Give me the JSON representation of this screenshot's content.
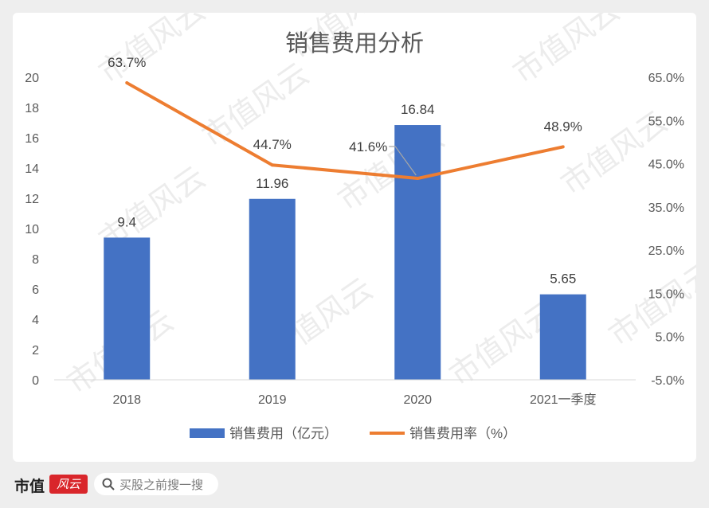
{
  "chart_data": {
    "type": "bar",
    "title": "销售费用分析",
    "categories": [
      "2018",
      "2019",
      "2020",
      "2021一季度"
    ],
    "series": [
      {
        "name": "销售费用（亿元）",
        "type": "bar",
        "axis": "left",
        "color": "#4472c4",
        "values": [
          9.4,
          11.96,
          16.84,
          5.65
        ],
        "labels": [
          "9.4",
          "11.96",
          "16.84",
          "5.65"
        ]
      },
      {
        "name": "销售费用率（%）",
        "type": "line",
        "axis": "right",
        "color": "#ed7d31",
        "values": [
          63.7,
          44.7,
          41.6,
          48.9
        ],
        "labels": [
          "63.7%",
          "44.7%",
          "41.6%",
          "48.9%"
        ]
      }
    ],
    "left_axis": {
      "ylim": [
        0,
        20
      ],
      "ticks": [
        "0",
        "2",
        "4",
        "6",
        "8",
        "10",
        "12",
        "14",
        "16",
        "18",
        "20"
      ]
    },
    "right_axis": {
      "ylim": [
        -5,
        65
      ],
      "ticks": [
        "-5.0%",
        "5.0%",
        "15.0%",
        "25.0%",
        "35.0%",
        "45.0%",
        "55.0%",
        "65.0%"
      ]
    },
    "grid": false,
    "legend_position": "bottom"
  },
  "watermark": "市值风云",
  "footer": {
    "brand": "市值",
    "brand_stamp": "风云",
    "search_placeholder": "买股之前搜一搜",
    "search_icon": "search-icon"
  }
}
